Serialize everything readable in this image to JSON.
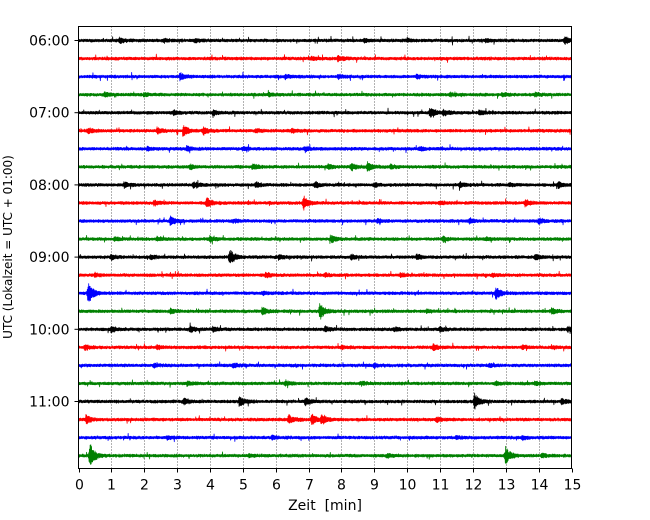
{
  "chart_data": {
    "type": "line",
    "title": "",
    "xlabel": "Zeit  [min]",
    "ylabel": "UTC (Lokalzeit = UTC + 01:00)",
    "xlim": [
      0,
      15
    ],
    "x_ticks": [
      "0",
      "1",
      "2",
      "3",
      "4",
      "5",
      "6",
      "7",
      "8",
      "9",
      "10",
      "11",
      "12",
      "13",
      "14",
      "15"
    ],
    "y_tick_labels": [
      "06:00",
      "07:00",
      "08:00",
      "09:00",
      "10:00",
      "11:00"
    ],
    "grid": "vertical dotted",
    "trace_interval_minutes": 15,
    "color_cycle": [
      "#000000",
      "#ff0000",
      "#0000ff",
      "#008000"
    ],
    "series": [
      {
        "start": "06:00",
        "events": [
          [
            1.25,
            0.3
          ],
          [
            2.6,
            0.2
          ],
          [
            3.55,
            0.2
          ],
          [
            8.7,
            0.2
          ],
          [
            10.0,
            0.2
          ],
          [
            12.4,
            0.2
          ],
          [
            14.8,
            0.45
          ]
        ]
      },
      {
        "start": "06:15",
        "events": [
          [
            7.1,
            0.2
          ],
          [
            7.9,
            0.35
          ]
        ]
      },
      {
        "start": "06:30",
        "events": [
          [
            3.1,
            0.4
          ],
          [
            6.3,
            0.2
          ],
          [
            7.9,
            0.2
          ],
          [
            10.3,
            0.2
          ]
        ]
      },
      {
        "start": "06:45",
        "events": [
          [
            0.8,
            0.3
          ],
          [
            2.0,
            0.2
          ],
          [
            5.8,
            0.2
          ],
          [
            11.3,
            0.2
          ],
          [
            12.9,
            0.2
          ],
          [
            13.9,
            0.2
          ]
        ]
      },
      {
        "start": "07:00",
        "events": [
          [
            2.9,
            0.25
          ],
          [
            4.1,
            0.25
          ],
          [
            10.7,
            0.55
          ],
          [
            11.1,
            0.3
          ],
          [
            12.2,
            0.3
          ]
        ]
      },
      {
        "start": "07:15",
        "events": [
          [
            0.3,
            0.3
          ],
          [
            2.4,
            0.35
          ],
          [
            3.2,
            0.6
          ],
          [
            3.8,
            0.4
          ],
          [
            5.4,
            0.2
          ],
          [
            6.5,
            0.2
          ]
        ]
      },
      {
        "start": "07:30",
        "events": [
          [
            2.1,
            0.2
          ],
          [
            3.3,
            0.3
          ],
          [
            5.0,
            0.2
          ],
          [
            6.9,
            0.25
          ],
          [
            10.4,
            0.2
          ]
        ]
      },
      {
        "start": "07:45",
        "events": [
          [
            3.4,
            0.25
          ],
          [
            5.3,
            0.25
          ],
          [
            7.6,
            0.25
          ],
          [
            8.3,
            0.4
          ],
          [
            8.8,
            0.6
          ],
          [
            9.5,
            0.2
          ]
        ]
      },
      {
        "start": "08:00",
        "events": [
          [
            1.4,
            0.3
          ],
          [
            3.5,
            0.35
          ],
          [
            5.4,
            0.3
          ],
          [
            7.2,
            0.3
          ],
          [
            9.0,
            0.2
          ],
          [
            11.6,
            0.3
          ],
          [
            13.1,
            0.2
          ],
          [
            14.6,
            0.35
          ]
        ]
      },
      {
        "start": "08:15",
        "events": [
          [
            2.3,
            0.3
          ],
          [
            3.9,
            0.6
          ],
          [
            6.85,
            0.8
          ],
          [
            11.0,
            0.2
          ],
          [
            13.6,
            0.4
          ]
        ]
      },
      {
        "start": "08:30",
        "events": [
          [
            2.8,
            0.5
          ],
          [
            4.7,
            0.2
          ],
          [
            9.1,
            0.2
          ],
          [
            11.9,
            0.3
          ],
          [
            14.0,
            0.35
          ]
        ]
      },
      {
        "start": "08:45",
        "events": [
          [
            1.1,
            0.2
          ],
          [
            2.4,
            0.2
          ],
          [
            4.0,
            0.3
          ],
          [
            7.7,
            0.4
          ],
          [
            11.1,
            0.3
          ],
          [
            12.4,
            0.2
          ]
        ]
      },
      {
        "start": "09:00",
        "events": [
          [
            1.0,
            0.25
          ],
          [
            2.2,
            0.25
          ],
          [
            4.6,
            0.9
          ],
          [
            6.1,
            0.3
          ],
          [
            8.3,
            0.3
          ],
          [
            10.3,
            0.3
          ],
          [
            13.9,
            0.3
          ]
        ]
      },
      {
        "start": "09:15",
        "events": [
          [
            0.5,
            0.2
          ],
          [
            5.7,
            0.3
          ],
          [
            7.5,
            0.2
          ],
          [
            9.8,
            0.2
          ],
          [
            12.6,
            0.2
          ]
        ]
      },
      {
        "start": "09:30",
        "events": [
          [
            0.3,
            1.3
          ],
          [
            5.6,
            0.2
          ],
          [
            12.7,
            0.7
          ]
        ]
      },
      {
        "start": "09:45",
        "events": [
          [
            2.8,
            0.3
          ],
          [
            5.6,
            0.45
          ],
          [
            7.35,
            1.0
          ],
          [
            10.6,
            0.2
          ],
          [
            14.4,
            0.3
          ]
        ]
      },
      {
        "start": "10:00",
        "events": [
          [
            1.0,
            0.3
          ],
          [
            3.4,
            0.4
          ],
          [
            4.1,
            0.3
          ],
          [
            7.5,
            0.3
          ],
          [
            9.6,
            0.2
          ],
          [
            11.0,
            0.25
          ],
          [
            14.9,
            0.3
          ]
        ]
      },
      {
        "start": "10:15",
        "events": [
          [
            0.2,
            0.3
          ],
          [
            2.4,
            0.2
          ],
          [
            8.0,
            0.2
          ],
          [
            10.8,
            0.35
          ],
          [
            13.5,
            0.2
          ],
          [
            14.4,
            0.2
          ]
        ]
      },
      {
        "start": "10:30",
        "events": [
          [
            2.3,
            0.2
          ],
          [
            4.7,
            0.25
          ],
          [
            9.0,
            0.2
          ],
          [
            12.5,
            0.2
          ]
        ]
      },
      {
        "start": "10:45",
        "events": [
          [
            3.3,
            0.2
          ],
          [
            6.3,
            0.3
          ],
          [
            8.6,
            0.2
          ],
          [
            12.7,
            0.2
          ],
          [
            13.9,
            0.2
          ]
        ]
      },
      {
        "start": "11:00",
        "events": [
          [
            3.2,
            0.4
          ],
          [
            4.9,
            0.55
          ],
          [
            6.9,
            0.45
          ],
          [
            12.05,
            1.0
          ],
          [
            14.7,
            0.3
          ]
        ]
      },
      {
        "start": "11:15",
        "events": [
          [
            0.25,
            0.45
          ],
          [
            6.4,
            0.5
          ],
          [
            7.1,
            0.6
          ],
          [
            7.4,
            0.5
          ],
          [
            10.9,
            0.3
          ]
        ]
      },
      {
        "start": "11:30",
        "events": [
          [
            2.7,
            0.2
          ],
          [
            5.9,
            0.2
          ],
          [
            11.5,
            0.2
          ],
          [
            13.5,
            0.2
          ]
        ]
      },
      {
        "start": "11:45",
        "events": [
          [
            0.35,
            1.4
          ],
          [
            5.2,
            0.2
          ],
          [
            9.4,
            0.2
          ],
          [
            13.0,
            1.0
          ],
          [
            14.1,
            0.2
          ]
        ]
      }
    ]
  }
}
